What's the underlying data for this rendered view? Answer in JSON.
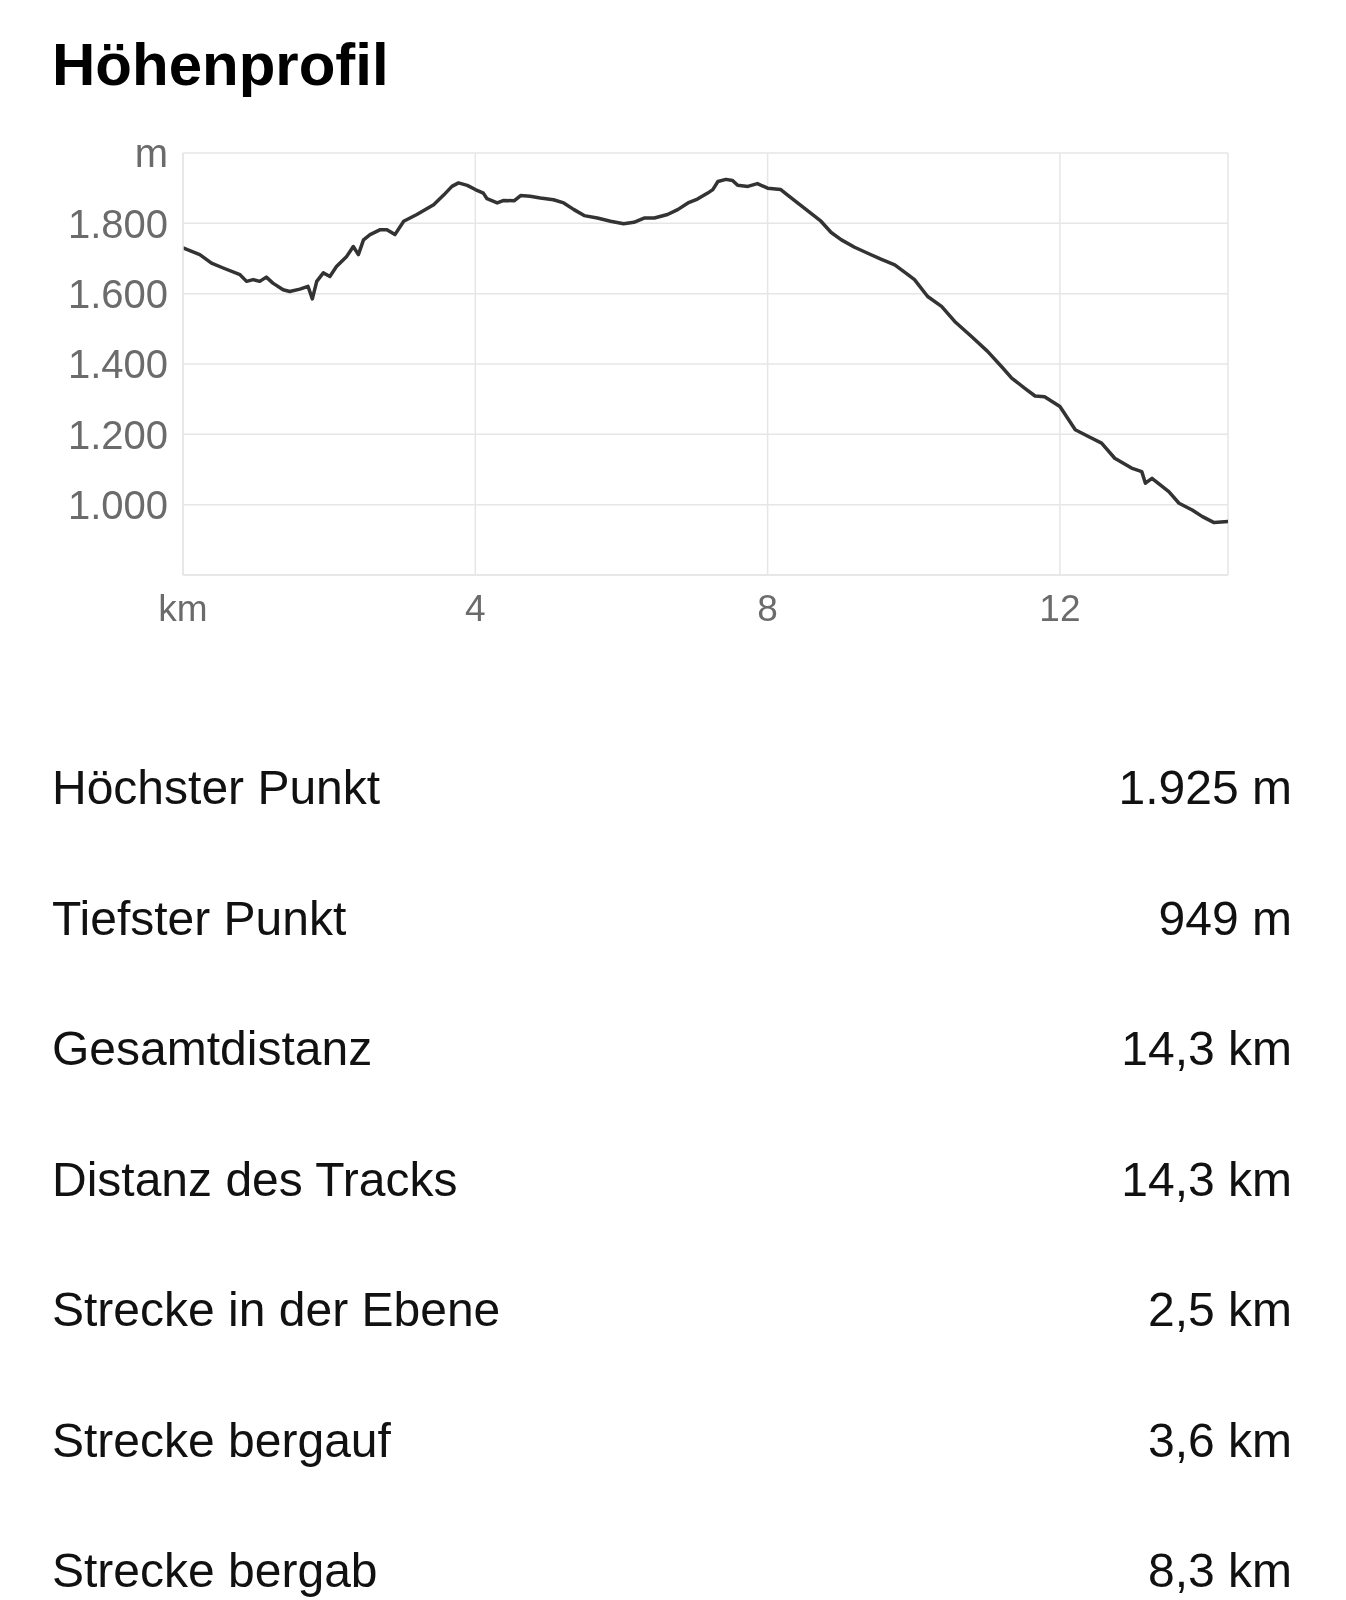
{
  "chart_data": [
    {
      "type": "line",
      "title": "Höhenprofil",
      "x": [
        0,
        0.23,
        0.39,
        0.55,
        0.78,
        0.87,
        0.96,
        1.05,
        1.14,
        1.23,
        1.37,
        1.46,
        1.6,
        1.71,
        1.77,
        1.83,
        1.92,
        2.01,
        2.1,
        2.24,
        2.33,
        2.4,
        2.47,
        2.56,
        2.7,
        2.79,
        2.9,
        3.02,
        3.2,
        3.43,
        3.57,
        3.68,
        3.77,
        3.89,
        4,
        4.11,
        4.16,
        4.3,
        4.39,
        4.53,
        4.62,
        4.75,
        4.89,
        5.07,
        5.21,
        5.35,
        5.49,
        5.67,
        5.85,
        6.03,
        6.17,
        6.31,
        6.45,
        6.63,
        6.77,
        6.91,
        7.04,
        7.18,
        7.25,
        7.32,
        7.43,
        7.52,
        7.59,
        7.73,
        7.86,
        8,
        8.18,
        8.27,
        8.41,
        8.59,
        8.73,
        8.87,
        9.01,
        9.19,
        9.37,
        9.55,
        9.74,
        9.92,
        10.01,
        10.19,
        10.38,
        10.56,
        10.79,
        11.01,
        11.2,
        11.34,
        11.52,
        11.66,
        11.79,
        12,
        12.21,
        12.39,
        12.57,
        12.75,
        12.98,
        13.12,
        13.17,
        13.26,
        13.49,
        13.63,
        13.81,
        13.95,
        14.11,
        14.3
      ],
      "series": [
        {
          "color": "#333333",
          "values": [
            1730,
            1711,
            1687,
            1673,
            1654,
            1635,
            1640,
            1635,
            1647,
            1630,
            1611,
            1606,
            1613,
            1621,
            1585,
            1635,
            1659,
            1649,
            1677,
            1706,
            1734,
            1711,
            1753,
            1768,
            1782,
            1782,
            1768,
            1806,
            1825,
            1853,
            1881,
            1905,
            1915,
            1908,
            1896,
            1886,
            1870,
            1858,
            1865,
            1864,
            1879,
            1877,
            1872,
            1867,
            1858,
            1839,
            1822,
            1815,
            1806,
            1799,
            1803,
            1815,
            1815,
            1825,
            1839,
            1858,
            1869,
            1886,
            1896,
            1919,
            1925,
            1922,
            1908,
            1905,
            1913,
            1900,
            1896,
            1881,
            1858,
            1829,
            1806,
            1774,
            1753,
            1732,
            1715,
            1698,
            1682,
            1654,
            1640,
            1592,
            1564,
            1521,
            1478,
            1436,
            1393,
            1360,
            1331,
            1309,
            1307,
            1279,
            1213,
            1194,
            1175,
            1132,
            1104,
            1094,
            1061,
            1075,
            1037,
            1004,
            985,
            966,
            949,
            952
          ]
        }
      ],
      "xlim": [
        0,
        14.3
      ],
      "xticks": [
        {
          "value": 0,
          "label": "km"
        },
        4,
        8,
        12
      ],
      "ylim": [
        800,
        2000
      ],
      "yticks": [
        {
          "value": 1000,
          "label": "1.000"
        },
        {
          "value": 1200,
          "label": "1.200"
        },
        {
          "value": 1400,
          "label": "1.400"
        },
        {
          "value": 1600,
          "label": "1.600"
        },
        {
          "value": 1800,
          "label": "1.800"
        },
        {
          "value": 2000,
          "label": "m"
        }
      ],
      "grid": true
    },
    {
      "type": "other",
      "annotations": [
        "Höchster Punkt",
        "1.925 m",
        "Tiefster Punkt",
        "949 m",
        "Gesamtdistanz",
        "14,3 km",
        "Distanz des Tracks",
        "14,3 km",
        "Strecke in der Ebene",
        "2,5 km",
        "Strecke bergauf",
        "3,6 km",
        "Strecke bergab",
        "8,3 km"
      ]
    }
  ]
}
